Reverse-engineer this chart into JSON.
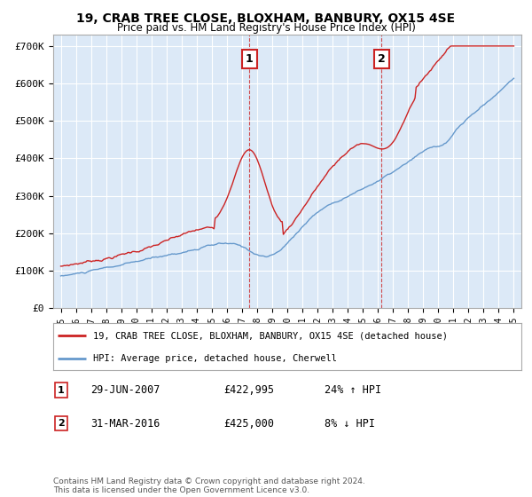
{
  "title": "19, CRAB TREE CLOSE, BLOXHAM, BANBURY, OX15 4SE",
  "subtitle": "Price paid vs. HM Land Registry's House Price Index (HPI)",
  "ylim": [
    0,
    730000
  ],
  "yticks": [
    0,
    100000,
    200000,
    300000,
    400000,
    500000,
    600000,
    700000
  ],
  "ytick_labels": [
    "£0",
    "£100K",
    "£200K",
    "£300K",
    "£400K",
    "£500K",
    "£600K",
    "£700K"
  ],
  "background_color": "#ffffff",
  "plot_bg_color": "#dce9f7",
  "grid_color": "#ffffff",
  "hpi_color": "#6699cc",
  "price_color": "#cc2222",
  "marker1_x": 2007.5,
  "marker1_label": "1",
  "marker2_x": 2016.25,
  "marker2_label": "2",
  "legend_line1": "19, CRAB TREE CLOSE, BLOXHAM, BANBURY, OX15 4SE (detached house)",
  "legend_line2": "HPI: Average price, detached house, Cherwell",
  "note1_num": "1",
  "note1_date": "29-JUN-2007",
  "note1_price": "£422,995",
  "note1_hpi": "24% ↑ HPI",
  "note2_num": "2",
  "note2_date": "31-MAR-2016",
  "note2_price": "£425,000",
  "note2_hpi": "8% ↓ HPI",
  "footer": "Contains HM Land Registry data © Crown copyright and database right 2024.\nThis data is licensed under the Open Government Licence v3.0."
}
